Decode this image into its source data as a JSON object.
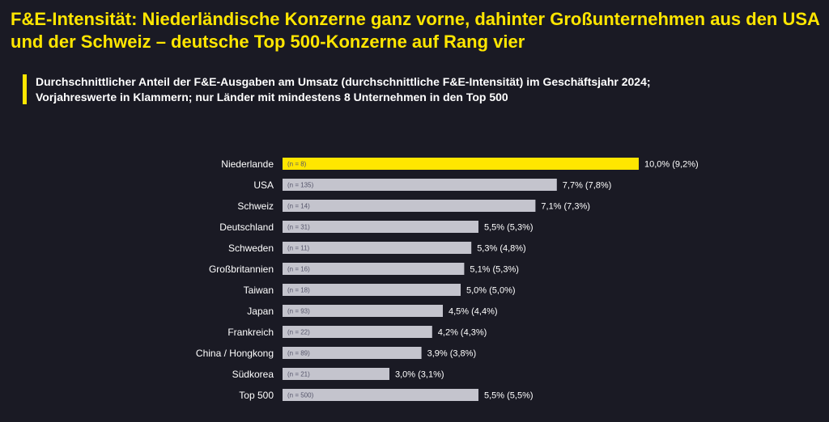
{
  "header": {
    "title": "F&E-Intensität: Niederländische Konzerne ganz vorne, dahinter Großunternehmen aus den USA und der Schweiz – deutsche Top 500-Konzerne auf Rang vier",
    "subtitle_line1": "Durchschnittlicher Anteil der F&E-Ausgaben am Umsatz (durchschnittliche F&E-Intensität) im Geschäftsjahr 2024;",
    "subtitle_line2": "Vorjahreswerte in Klammern; nur Länder mit mindestens 8 Unternehmen in den Top 500"
  },
  "colors": {
    "background": "#1a1a24",
    "accent": "#ffe600",
    "bar": "#c4c4cd",
    "text": "#ffffff"
  },
  "chart_data": {
    "type": "bar",
    "orientation": "horizontal",
    "xlim": [
      0,
      10
    ],
    "categories": [
      "Niederlande",
      "USA",
      "Schweiz",
      "Deutschland",
      "Schweden",
      "Großbritannien",
      "Taiwan",
      "Japan",
      "Frankreich",
      "China / Hongkong",
      "Südkorea",
      "Top 500"
    ],
    "n_labels": [
      "(n = 8)",
      "(n = 135)",
      "(n = 14)",
      "(n = 31)",
      "(n = 11)",
      "(n = 16)",
      "(n = 18)",
      "(n = 93)",
      "(n = 22)",
      "(n = 89)",
      "(n = 21)",
      "(n = 500)"
    ],
    "values": [
      10.0,
      7.7,
      7.1,
      5.5,
      5.3,
      5.1,
      5.0,
      4.5,
      4.2,
      3.9,
      3.0,
      5.5
    ],
    "previous_year": [
      9.2,
      7.8,
      7.3,
      5.3,
      4.8,
      5.3,
      5.0,
      4.4,
      4.3,
      3.8,
      3.1,
      5.5
    ],
    "value_labels": [
      "10,0% (9,2%)",
      "7,7% (7,8%)",
      "7,1% (7,3%)",
      "5,5% (5,3%)",
      "5,3% (4,8%)",
      "5,1% (5,3%)",
      "5,0% (5,0%)",
      "4,5% (4,4%)",
      "4,2% (4,3%)",
      "3,9% (3,8%)",
      "3,0% (3,1%)",
      "5,5% (5,5%)"
    ],
    "highlight": "Niederlande"
  }
}
